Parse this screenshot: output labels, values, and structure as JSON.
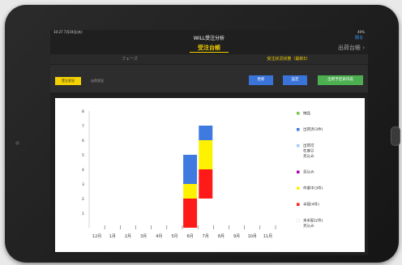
{
  "status": {
    "time": "10:27 7月19日(木)",
    "battery": "40%"
  },
  "app": {
    "title": "WILL受注分析",
    "close_label": "閉る"
  },
  "nav": {
    "center_title": "受注台帳",
    "right_link": "出荷台帳 ›"
  },
  "segments": [
    "フェーズ",
    "受注状況状態（最新5）"
  ],
  "toolbar": {
    "toggle_on": "受注状況",
    "toggle_off": "出荷状況",
    "btn_left": "更新",
    "btn_mid": "設定",
    "btn_right": "出荷予定表作成"
  },
  "colors": {
    "green": "#7ac943",
    "blue": "#3f7ae0",
    "lightblue": "#a5c8ff",
    "purple": "#b000b8",
    "yellow": "#fff200",
    "red": "#ff1a1a",
    "white": "#ffffff"
  },
  "chart_data": {
    "type": "bar",
    "stacked": true,
    "categories": [
      "12月",
      "1月",
      "2月",
      "3月",
      "4月",
      "5月",
      "6月",
      "7月",
      "8月",
      "9月",
      "10月",
      "11月"
    ],
    "ylim": [
      0,
      8
    ],
    "yticks": [
      "1",
      "2",
      "3",
      "4",
      "5",
      "6",
      "7",
      "8"
    ],
    "series": [
      {
        "name": "未手配(2件)\n見込み",
        "color": "#ffffff",
        "values": [
          0,
          0,
          0,
          0,
          0,
          0,
          0,
          2,
          0,
          0,
          0,
          0
        ]
      },
      {
        "name": "手配(4件)",
        "color": "#ff1a1a",
        "values": [
          0,
          0,
          0,
          0,
          0,
          0,
          2,
          2,
          0,
          0,
          0,
          0
        ]
      },
      {
        "name": "作業中(3件)",
        "color": "#fff200",
        "values": [
          0,
          0,
          0,
          0,
          0,
          0,
          1,
          2,
          0,
          0,
          0,
          0
        ]
      },
      {
        "name": "見込み",
        "color": "#b000b8",
        "values": [
          0,
          0,
          0,
          0,
          0,
          0,
          0,
          0,
          0,
          0,
          0,
          0
        ]
      },
      {
        "name": "出荷可\n在庫引\n見込み",
        "color": "#a5c8ff",
        "values": [
          0,
          0,
          0,
          0,
          0,
          0,
          0,
          0,
          0,
          0,
          0,
          0
        ]
      },
      {
        "name": "出荷済(3件)",
        "color": "#3f7ae0",
        "values": [
          0,
          0,
          0,
          0,
          0,
          0,
          2,
          1,
          0,
          0,
          0,
          0
        ]
      },
      {
        "name": "納品",
        "color": "#7ac943",
        "values": [
          0,
          0,
          0,
          0,
          0,
          0,
          0,
          0,
          0,
          0,
          0,
          0
        ]
      }
    ],
    "legend_order": [
      6,
      5,
      4,
      3,
      2,
      1,
      0
    ],
    "legend_position": "right"
  }
}
